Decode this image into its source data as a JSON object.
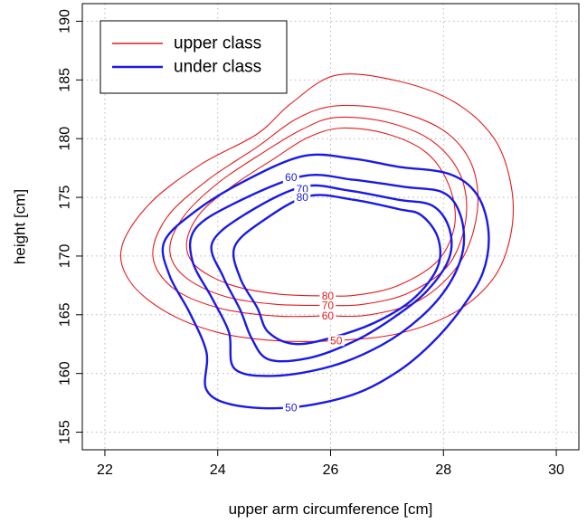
{
  "chart_data": {
    "type": "contour",
    "xlabel": "upper arm circumference [cm]",
    "ylabel": "height [cm]",
    "xlim": [
      21.6,
      30.4
    ],
    "ylim": [
      153.5,
      191.5
    ],
    "x_ticks": [
      22,
      24,
      26,
      28,
      30
    ],
    "y_ticks": [
      155,
      160,
      165,
      170,
      175,
      180,
      185,
      190
    ],
    "grid": true,
    "legend_position": "top-left",
    "legend": [
      {
        "label": "upper class",
        "color": "#e41a1c"
      },
      {
        "label": "under class",
        "color": "#1a1ae6"
      }
    ],
    "series": [
      {
        "name": "upper class",
        "color": "#e41a1c",
        "levels": [
          {
            "level": "50",
            "label_at": [
              26.1,
              162.8
            ],
            "points": [
              [
                26.1,
                185.4
              ],
              [
                27.2,
                184.9
              ],
              [
                28.2,
                183.1
              ],
              [
                28.9,
                180
              ],
              [
                29.2,
                176
              ],
              [
                29.2,
                172
              ],
              [
                28.9,
                168.2
              ],
              [
                28.2,
                165.2
              ],
              [
                27.2,
                163.4
              ],
              [
                26.1,
                162.8
              ],
              [
                25,
                162.8
              ],
              [
                24,
                163.5
              ],
              [
                23.1,
                165.2
              ],
              [
                22.45,
                167.8
              ],
              [
                22.3,
                170.8
              ],
              [
                22.8,
                174.5
              ],
              [
                23.7,
                177.8
              ],
              [
                24.7,
                180.4
              ],
              [
                25.3,
                183
              ],
              [
                26.1,
                185.4
              ]
            ]
          },
          {
            "level": "60",
            "label_at": [
              25.95,
              164.9
            ],
            "points": [
              [
                26.1,
                182.8
              ],
              [
                27.1,
                182.4
              ],
              [
                28,
                180.7
              ],
              [
                28.5,
                177.8
              ],
              [
                28.6,
                173.8
              ],
              [
                28.3,
                169.5
              ],
              [
                27.6,
                166.3
              ],
              [
                26.7,
                165
              ],
              [
                25.9,
                164.9
              ],
              [
                25,
                164.9
              ],
              [
                24,
                165.6
              ],
              [
                23.2,
                167.3
              ],
              [
                22.85,
                170
              ],
              [
                23.1,
                173.3
              ],
              [
                23.8,
                176.4
              ],
              [
                24.7,
                179.3
              ],
              [
                25.4,
                181.7
              ],
              [
                26.1,
                182.8
              ]
            ]
          },
          {
            "level": "70",
            "label_at": [
              25.95,
              165.8
            ],
            "points": [
              [
                26.1,
                181.8
              ],
              [
                27,
                181.4
              ],
              [
                27.8,
                179.8
              ],
              [
                28.3,
                176.9
              ],
              [
                28.4,
                173.2
              ],
              [
                28.1,
                169.3
              ],
              [
                27.4,
                166.9
              ],
              [
                26.6,
                165.9
              ],
              [
                25.9,
                165.8
              ],
              [
                25,
                165.9
              ],
              [
                24.1,
                166.6
              ],
              [
                23.4,
                168.3
              ],
              [
                23.15,
                170.6
              ],
              [
                23.4,
                173.4
              ],
              [
                24,
                176.2
              ],
              [
                24.8,
                178.8
              ],
              [
                25.5,
                180.8
              ],
              [
                26.1,
                181.8
              ]
            ]
          },
          {
            "level": "80",
            "label_at": [
              25.95,
              166.6
            ],
            "points": [
              [
                26.2,
                180.9
              ],
              [
                27,
                180.4
              ],
              [
                27.7,
                178.8
              ],
              [
                28.1,
                176
              ],
              [
                28.2,
                172.7
              ],
              [
                27.9,
                169.6
              ],
              [
                27.2,
                167.5
              ],
              [
                26.5,
                166.7
              ],
              [
                25.9,
                166.6
              ],
              [
                25,
                166.8
              ],
              [
                24.2,
                167.6
              ],
              [
                23.6,
                169.2
              ],
              [
                23.45,
                171.2
              ],
              [
                23.7,
                173.7
              ],
              [
                24.3,
                176.1
              ],
              [
                25,
                178.3
              ],
              [
                25.6,
                180.1
              ],
              [
                26.2,
                180.9
              ]
            ]
          }
        ]
      },
      {
        "name": "under class",
        "color": "#1a1ae6",
        "levels": [
          {
            "level": "50",
            "label_at": [
              25.3,
              157.1
            ],
            "points": [
              [
                25.5,
                178.5
              ],
              [
                26.4,
                178.3
              ],
              [
                27.2,
                177.6
              ],
              [
                28.1,
                177
              ],
              [
                28.6,
                175.2
              ],
              [
                28.8,
                172
              ],
              [
                28.7,
                168.6
              ],
              [
                28.3,
                165.4
              ],
              [
                27.8,
                162.6
              ],
              [
                27.2,
                160.2
              ],
              [
                26.4,
                158.2
              ],
              [
                25.3,
                157.1
              ],
              [
                24.3,
                157.3
              ],
              [
                23.8,
                158.6
              ],
              [
                23.8,
                161.8
              ],
              [
                23.5,
                165.2
              ],
              [
                23.15,
                168.3
              ],
              [
                23.05,
                171.2
              ],
              [
                23.6,
                173.8
              ],
              [
                24.4,
                176.2
              ],
              [
                25.5,
                178.5
              ]
            ]
          },
          {
            "level": "60",
            "label_at": [
              25.3,
              176.7
            ],
            "points": [
              [
                25.5,
                176.8
              ],
              [
                26.4,
                176.5
              ],
              [
                27.3,
                175.9
              ],
              [
                28,
                175.4
              ],
              [
                28.3,
                173.5
              ],
              [
                28.35,
                170.6
              ],
              [
                28.1,
                167.6
              ],
              [
                27.6,
                164.8
              ],
              [
                26.9,
                162.4
              ],
              [
                26,
                160.6
              ],
              [
                25,
                159.8
              ],
              [
                24.3,
                160.4
              ],
              [
                24.2,
                163.5
              ],
              [
                23.9,
                166.4
              ],
              [
                23.55,
                169.6
              ],
              [
                23.6,
                172.3
              ],
              [
                24.3,
                174.5
              ],
              [
                25.5,
                176.8
              ]
            ]
          },
          {
            "level": "70",
            "label_at": [
              25.5,
              175.7
            ],
            "points": [
              [
                25.5,
                175.9
              ],
              [
                26.3,
                175.6
              ],
              [
                27.2,
                174.8
              ],
              [
                27.8,
                174.3
              ],
              [
                28.1,
                172.4
              ],
              [
                28.1,
                169.8
              ],
              [
                27.7,
                167
              ],
              [
                27.1,
                164.7
              ],
              [
                26.4,
                162.7
              ],
              [
                25.6,
                161.3
              ],
              [
                24.9,
                161.2
              ],
              [
                24.6,
                163
              ],
              [
                24.4,
                165.4
              ],
              [
                24.1,
                168.2
              ],
              [
                23.9,
                171.1
              ],
              [
                24.5,
                173.6
              ],
              [
                25.5,
                175.9
              ]
            ]
          },
          {
            "level": "80",
            "label_at": [
              25.5,
              175
            ],
            "points": [
              [
                25.6,
                175.1
              ],
              [
                26.4,
                174.8
              ],
              [
                27.2,
                174
              ],
              [
                27.6,
                173.5
              ],
              [
                27.9,
                171.6
              ],
              [
                27.9,
                169.1
              ],
              [
                27.5,
                166.5
              ],
              [
                26.9,
                164.6
              ],
              [
                26.2,
                163.3
              ],
              [
                25.4,
                162.5
              ],
              [
                24.9,
                163.5
              ],
              [
                24.7,
                165.6
              ],
              [
                24.4,
                168.1
              ],
              [
                24.3,
                170.8
              ],
              [
                24.8,
                173
              ],
              [
                25.6,
                175.1
              ]
            ]
          }
        ]
      }
    ]
  }
}
